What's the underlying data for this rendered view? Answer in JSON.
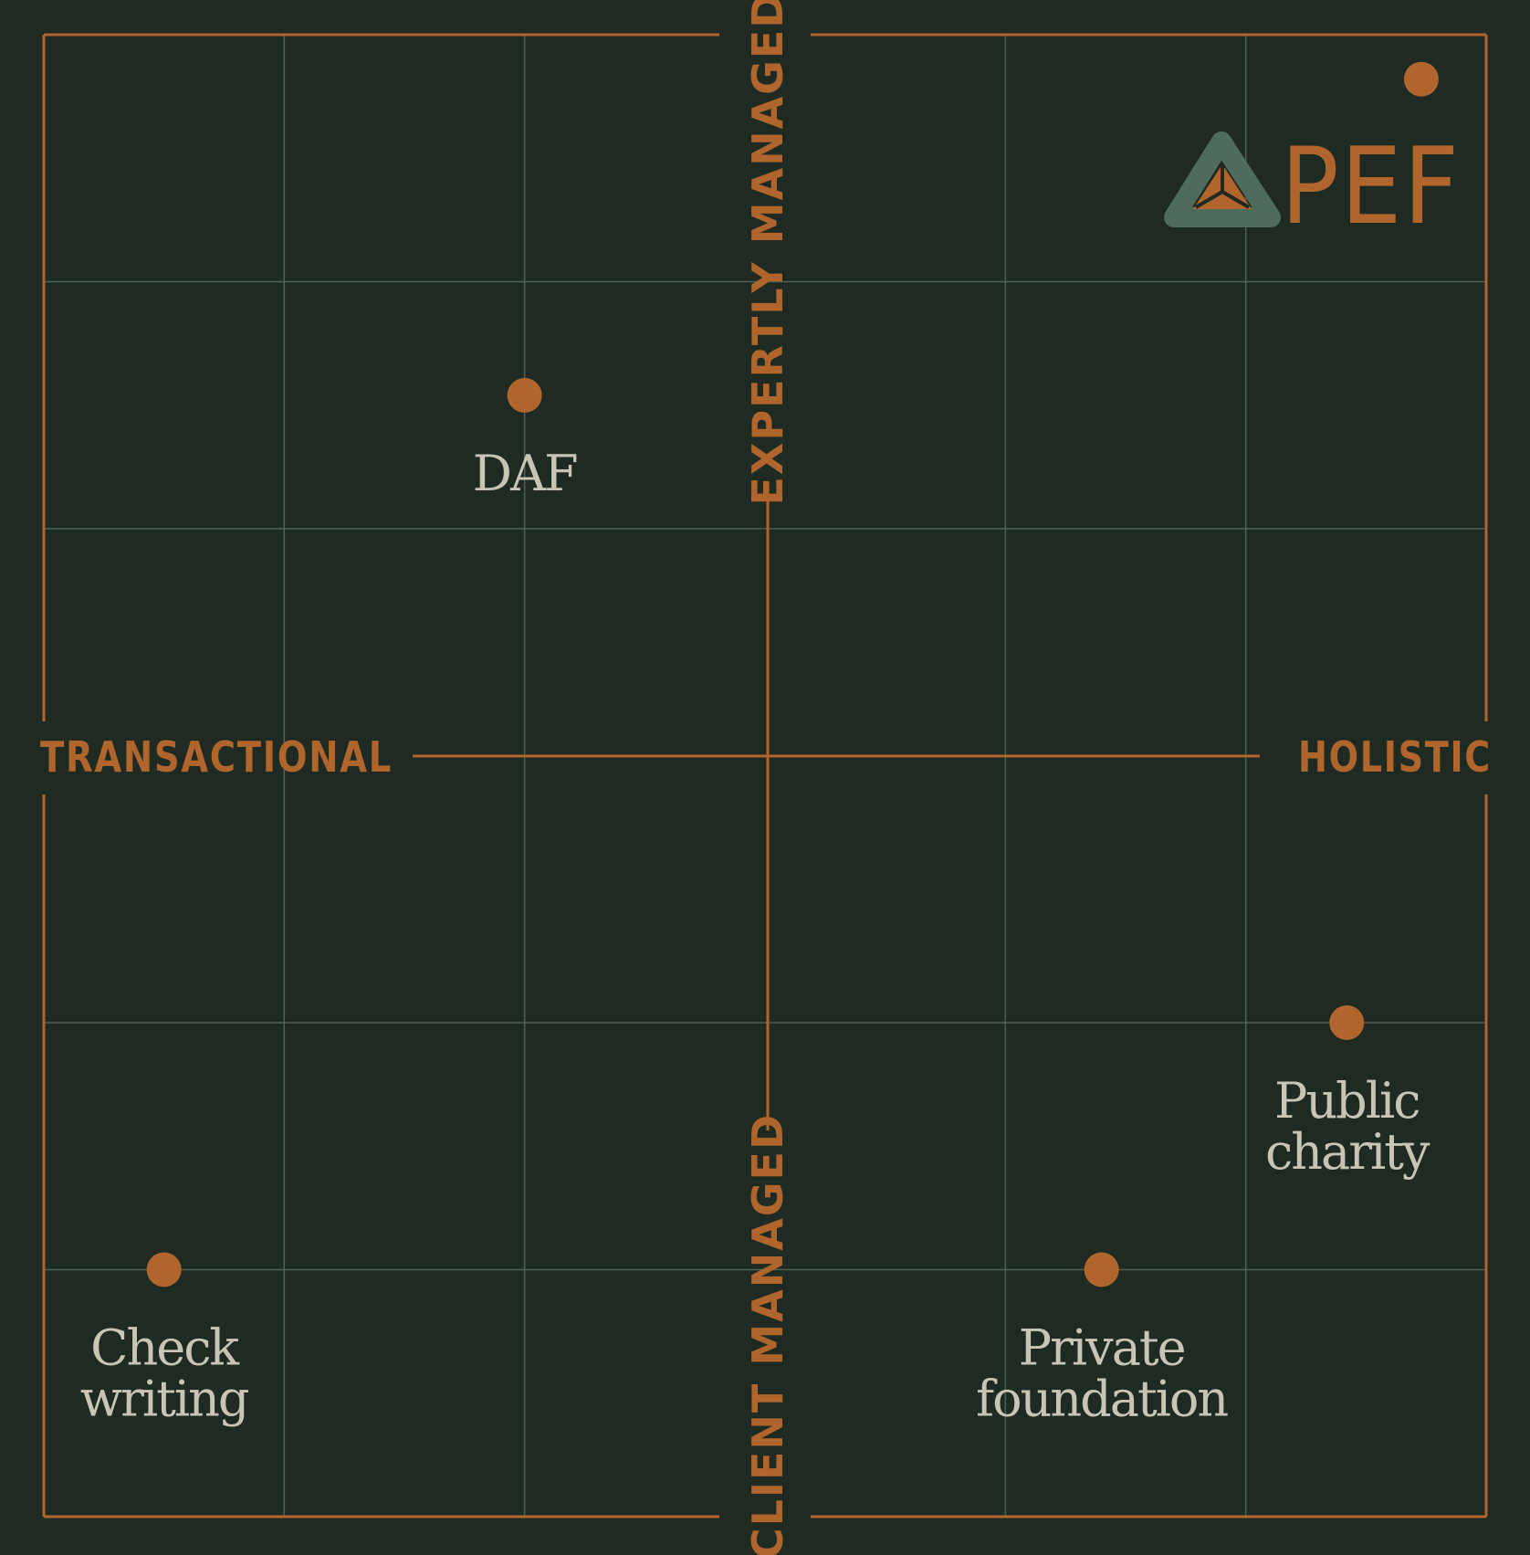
{
  "axes": {
    "top": "EXPERTLY MANAGED",
    "bottom": "CLIENT MANAGED",
    "left": "TRANSACTIONAL",
    "right": "HOLISTIC"
  },
  "points": [
    {
      "id": "daf",
      "lines": [
        "DAF"
      ],
      "col": 2,
      "row": 1.46
    },
    {
      "id": "public-charity",
      "lines": [
        "Public",
        "charity"
      ],
      "col": 5.42,
      "row": 4
    },
    {
      "id": "check-writing",
      "lines": [
        "Check",
        "writing"
      ],
      "col": 0.5,
      "row": 5
    },
    {
      "id": "private-foundation",
      "lines": [
        "Private",
        "foundation"
      ],
      "col": 4.4,
      "row": 5
    },
    {
      "id": "top-right-dot",
      "lines": [],
      "col": 5.73,
      "row": 0.18
    }
  ],
  "logo": {
    "text": "PEF"
  },
  "colors": {
    "background": "#1f2b22",
    "accent": "#b0652c",
    "grid": "#4d6254",
    "label": "#c9c5b6",
    "logo_mark": "#4f6b5c"
  }
}
